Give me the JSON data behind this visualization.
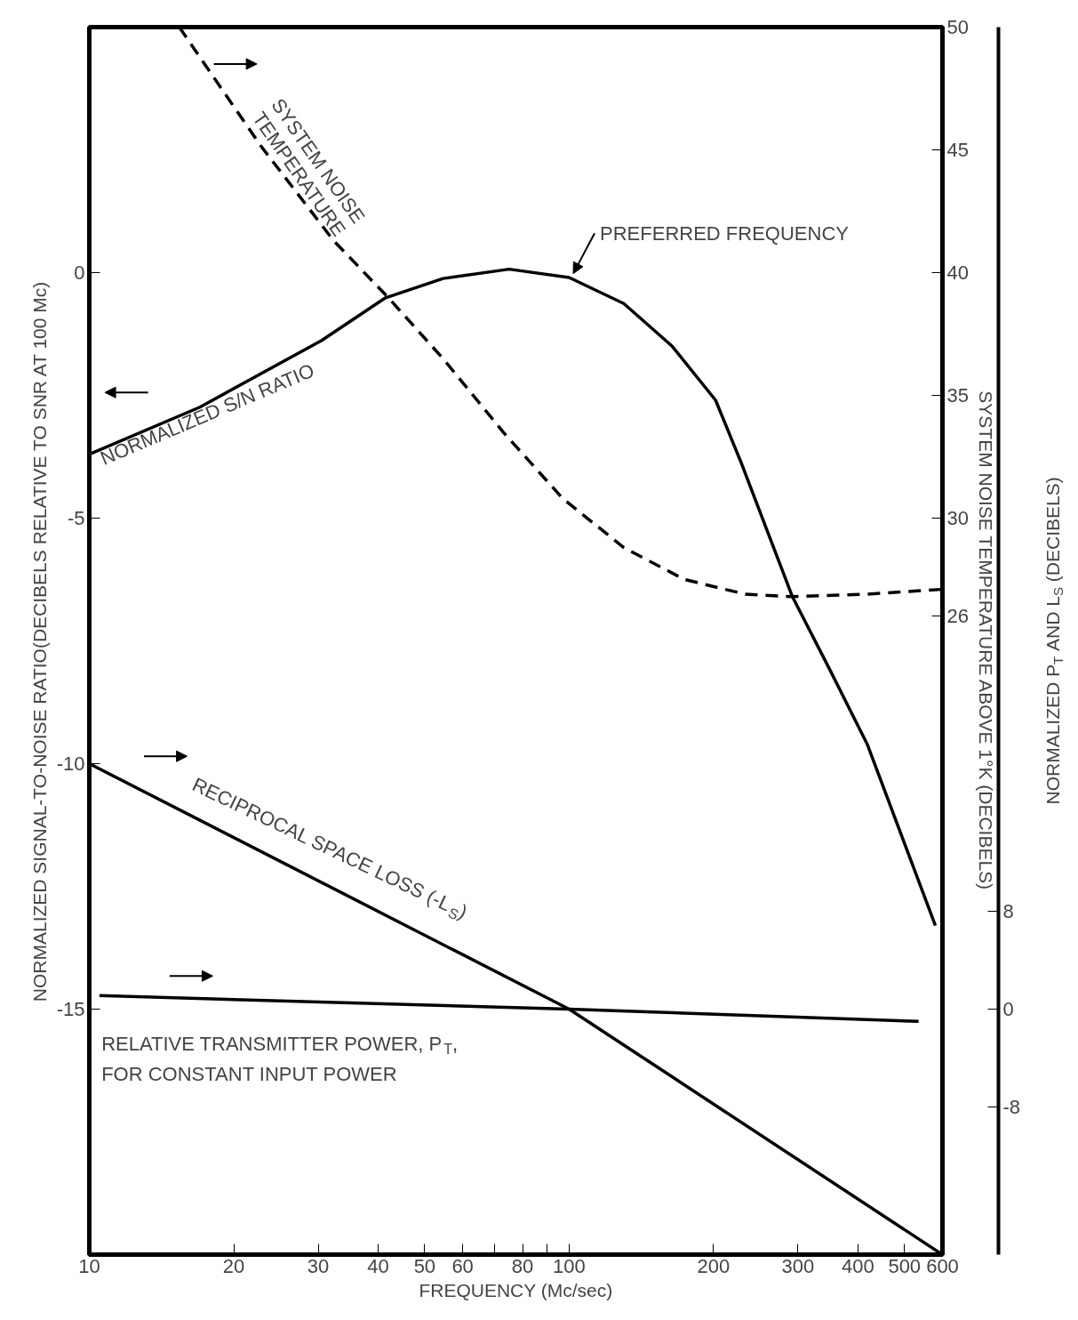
{
  "chart_data": {
    "type": "line",
    "xlabel": "FREQUENCY (Mc/sec)",
    "ylabel": "NORMALIZED SIGNAL-TO-NOISE RATIO(DECIBELS RELATIVE TO SNR AT 100 Mc)",
    "y2label": "SYSTEM NOISE TEMPERATURE ABOVE 1°K (DECIBELS)",
    "y3label": "NORMALIZED P$_{T}$ AND L$_{S}$ (DECIBELS)",
    "log": "x",
    "xlim": [
      10,
      600
    ],
    "xticks": [
      10,
      20,
      30,
      40,
      50,
      60,
      {
        "value": 70,
        "label": null
      },
      80,
      {
        "value": 90,
        "label": null
      },
      100,
      200,
      300,
      400,
      500,
      600
    ],
    "ylim": [
      -20,
      5
    ],
    "yticks": [
      0,
      -5,
      -10,
      -15
    ],
    "y2lim": [
      0,
      50
    ],
    "y2ticks": [
      26,
      30,
      35,
      40,
      45,
      50
    ],
    "y3lim": [
      -20,
      80
    ],
    "y3ticks": [
      -8,
      0,
      8
    ],
    "grid": false,
    "series": [
      {
        "color": "#000000",
        "line_style": "solid",
        "x": [
          10,
          17,
          30.5,
          41.3,
          54.6,
          75,
          100,
          130,
          164,
          202,
          229,
          292,
          350,
          418,
          580
        ],
        "values": [
          -3.7,
          -2.74,
          -1.38,
          -0.52,
          -0.12,
          0.07,
          -0.1,
          -0.63,
          -1.5,
          -2.6,
          -3.9,
          -6.6,
          -8.1,
          -9.6,
          -13.3
        ]
      },
      {
        "axis": "y2",
        "color": "#000000",
        "line_style": "dashed",
        "x": [
          15.4,
          22.7,
          32.3,
          41.9,
          54.6,
          72.9,
          97,
          130,
          174,
          233,
          292,
          418,
          600
        ],
        "values": [
          50,
          45.2,
          41.3,
          39,
          36.5,
          33.5,
          30.8,
          28.8,
          27.5,
          26.9,
          26.8,
          26.9,
          27.1
        ]
      },
      {
        "axis": "y3",
        "color": "#000000",
        "line_style": "solid",
        "x": [
          10,
          100,
          600
        ],
        "values": [
          20,
          0,
          -20
        ]
      },
      {
        "axis": "y3",
        "color": "#000000",
        "line_style": "solid",
        "x": [
          10.5,
          100,
          535
        ],
        "values": [
          1.1,
          0,
          -1
        ]
      }
    ],
    "annotations": [
      {
        "text": "PREFERRED FREQUENCY",
        "x": 100,
        "y": 0
      },
      "NORMALIZED S/N RATIO",
      "SYSTEM NOISE TEMPERATURE",
      "RECIPROCAL SPACE LOSS (-L$_{S}$)",
      "RELATIVE TRANSMITTER POWER, P$_{T}$, FOR CONSTANT INPUT POWER"
    ]
  }
}
